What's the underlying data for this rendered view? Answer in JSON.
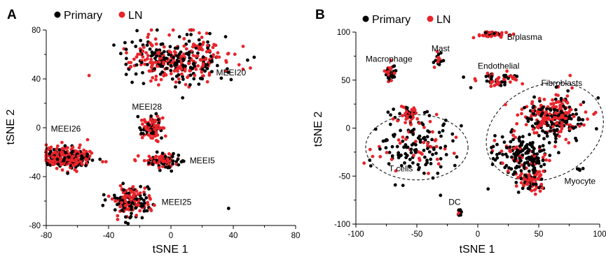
{
  "colors": {
    "primary": "#000000",
    "ln": "#e8242b"
  },
  "chart_data": [
    {
      "type": "scatter",
      "panel": "A",
      "xlabel": "tSNE 1",
      "ylabel": "tSNE 2",
      "xlim": [
        -80,
        80
      ],
      "ylim": [
        -80,
        80
      ],
      "xticks": [
        -80,
        -40,
        0,
        40,
        80
      ],
      "yticks": [
        -80,
        -40,
        0,
        40,
        80
      ],
      "grid": false,
      "legend": {
        "placement": "top-left",
        "entries": [
          "Primary",
          "LN"
        ]
      },
      "series": [
        {
          "name": "Primary",
          "color": "#000000"
        },
        {
          "name": "LN",
          "color": "#e8242b"
        }
      ],
      "clusters": [
        {
          "label": "MEEI20",
          "cx": 5,
          "cy": 56,
          "sx": 16,
          "sy": 10,
          "n_primary": 170,
          "n_ln": 200,
          "label_x": 29,
          "label_y": 43
        },
        {
          "label": "MEEI28",
          "cx": -13,
          "cy": 0,
          "sx": 3.2,
          "sy": 5,
          "n_primary": 40,
          "n_ln": 70,
          "label_x": -25,
          "label_y": 15
        },
        {
          "label": "MEEI26",
          "cx": -67,
          "cy": -24,
          "sx": 7.5,
          "sy": 4.2,
          "n_primary": 90,
          "n_ln": 200,
          "label_x": -77,
          "label_y": -3
        },
        {
          "label": "MEEI5",
          "cx": -5,
          "cy": -27,
          "sx": 7,
          "sy": 2.8,
          "n_primary": 45,
          "n_ln": 55,
          "label_x": 12,
          "label_y": -29
        },
        {
          "label": "MEEI25",
          "cx": -25,
          "cy": -60,
          "sx": 6,
          "sy": 6,
          "n_primary": 90,
          "n_ln": 90,
          "label_x": -6,
          "label_y": -63
        }
      ],
      "outliers": [
        {
          "x": 37,
          "y": -66,
          "series": "Primary"
        }
      ]
    },
    {
      "type": "scatter",
      "panel": "B",
      "xlabel": "tSNE 1",
      "ylabel": "tSNE 2",
      "xlim": [
        -100,
        100
      ],
      "ylim": [
        -100,
        100
      ],
      "xticks": [
        -100,
        -50,
        0,
        50,
        100
      ],
      "yticks": [
        -100,
        -50,
        0,
        50,
        100
      ],
      "grid": false,
      "legend": {
        "placement": "top-left",
        "entries": [
          "Primary",
          "LN"
        ]
      },
      "series": [
        {
          "name": "Primary",
          "color": "#000000"
        },
        {
          "name": "LN",
          "color": "#e8242b"
        }
      ],
      "clusters": [
        {
          "label": "B/plasma",
          "cx": 12,
          "cy": 98,
          "sx": 6,
          "sy": 1.6,
          "n_primary": 8,
          "n_ln": 40,
          "label_x": 24,
          "label_y": 92
        },
        {
          "label": "Mast",
          "cx": -32,
          "cy": 70,
          "sx": 1.5,
          "sy": 4,
          "n_primary": 12,
          "n_ln": 10,
          "label_x": -38,
          "label_y": 80
        },
        {
          "label": "Macrophage",
          "cx": -72,
          "cy": 58,
          "sx": 2.5,
          "sy": 4,
          "n_primary": 25,
          "n_ln": 15,
          "label_x": -92,
          "label_y": 69
        },
        {
          "label": "Endothelial",
          "cx": 18,
          "cy": 50,
          "sx": 9,
          "sy": 4,
          "n_primary": 30,
          "n_ln": 35,
          "label_x": 0,
          "label_y": 62
        },
        {
          "label": "Fibroblasts",
          "cx": 64,
          "cy": 12,
          "sx": 13,
          "sy": 11,
          "n_primary": 130,
          "n_ln": 160,
          "label_x": 52,
          "label_y": 44
        },
        {
          "label": "",
          "cx": 38,
          "cy": -30,
          "sx": 12,
          "sy": 11,
          "n_primary": 150,
          "n_ln": 40
        },
        {
          "label": "",
          "cx": 43,
          "cy": -55,
          "sx": 5,
          "sy": 6,
          "n_primary": 25,
          "n_ln": 55
        },
        {
          "label": "T cells",
          "cx": -52,
          "cy": -15,
          "sx": 17,
          "sy": 17,
          "n_primary": 120,
          "n_ln": 45,
          "label_x": -73,
          "label_y": -45
        },
        {
          "label": "",
          "cx": -57,
          "cy": 15,
          "sx": 3,
          "sy": 4,
          "n_primary": 10,
          "n_ln": 30
        },
        {
          "label": "Myocyte",
          "cx": 83,
          "cy": -43,
          "sx": 1,
          "sy": 1,
          "n_primary": 6,
          "n_ln": 0,
          "label_x": 71,
          "label_y": -58
        },
        {
          "label": "DC",
          "cx": -15,
          "cy": -88,
          "sx": 1.2,
          "sy": 2.2,
          "n_primary": 8,
          "n_ln": 4,
          "label_x": -24,
          "label_y": -80
        }
      ],
      "ellipses": [
        {
          "cx": -50,
          "cy": -20,
          "rx": 42,
          "ry": 34
        },
        {
          "cx": 55,
          "cy": -4,
          "rx": 50,
          "ry": 48,
          "rotate": -25
        }
      ]
    }
  ]
}
